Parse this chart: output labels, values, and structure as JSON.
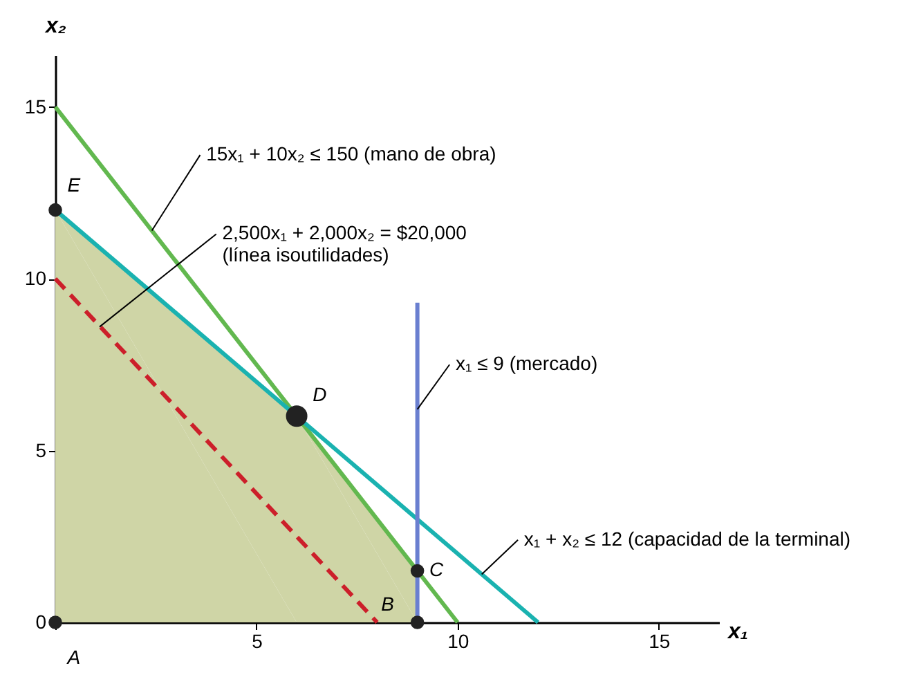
{
  "chart_data": {
    "type": "line",
    "xlabel": "x₁",
    "ylabel": "x₂",
    "xlim": [
      0,
      16.5
    ],
    "ylim": [
      0,
      16.5
    ],
    "xticks": [
      {
        "value": 0,
        "label": null
      },
      5,
      10,
      15
    ],
    "yticks": [
      0,
      5,
      10,
      15
    ],
    "grid": false,
    "series": [
      {
        "type": "area",
        "color": "#cfd5a6",
        "x": [
          0,
          6,
          9,
          9
        ],
        "values": [
          12,
          6,
          1.5,
          0
        ]
      },
      {
        "color": "#62b84f",
        "x": [
          0,
          10
        ],
        "values": [
          15,
          0
        ]
      },
      {
        "color": "#1ab2b0",
        "x": [
          0,
          12
        ],
        "values": [
          12,
          0
        ]
      },
      {
        "color": "#6a7fd0",
        "x": [
          9,
          9
        ],
        "values": [
          0,
          9.3
        ]
      },
      {
        "type": "line",
        "color": "#cc1f2a",
        "line_style": "dashed",
        "x": [
          0,
          8
        ],
        "values": [
          10,
          0
        ]
      },
      {
        "type": "bubble",
        "color": "#222222",
        "x": [
          0,
          9,
          9,
          6,
          0
        ],
        "values": [
          0,
          0,
          1.5,
          6,
          12
        ],
        "sizes": [
          0.4,
          0.4,
          0.4,
          1,
          0.4
        ]
      }
    ],
    "annotations": [
      {
        "text": "15x₁ + 10x₂ ≤ 150 (mano de obra)",
        "x": 2.4,
        "y": 11.4
      },
      {
        "text": "2,500x₁ + 2,000x₂ = $20,000\n(línea isoutilidades)",
        "x": 1.1,
        "y": 8.6
      },
      {
        "text": "x₁ ≤ 9 (mercado)",
        "x": 9,
        "y": 6.2
      },
      {
        "text": "x₁ + x₂ ≤ 12 (capacidad de la terminal)",
        "x": 10.6,
        "y": 1.4
      },
      {
        "text": "A",
        "x": 0,
        "y": 0
      },
      {
        "text": "B",
        "x": 9,
        "y": 0
      },
      {
        "text": "C",
        "x": 9,
        "y": 1.5
      },
      {
        "text": "D",
        "x": 6,
        "y": 6
      },
      {
        "text": "E",
        "x": 0,
        "y": 12
      }
    ]
  }
}
